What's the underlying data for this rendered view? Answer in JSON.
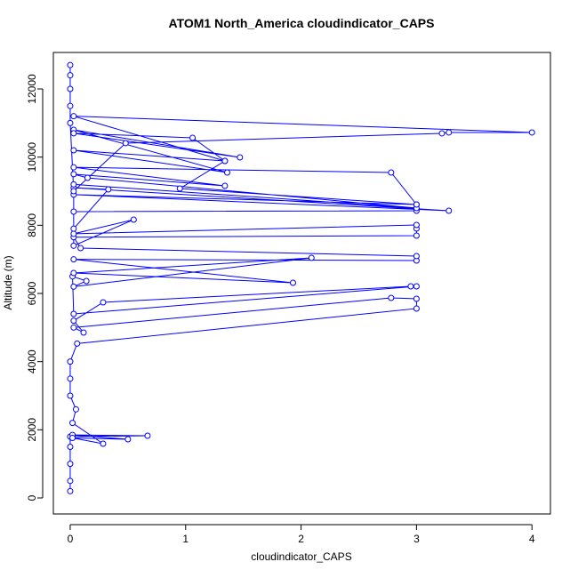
{
  "chart_data": {
    "type": "line",
    "title": "ATOM1 North_America cloudindicator_CAPS",
    "x_label": "cloudindicator_CAPS",
    "y_label": "Altitude (m)",
    "color": "#0000ff",
    "markers": true,
    "xlim": [
      -0.146,
      4.16
    ],
    "ylim": [
      -470,
      13070
    ],
    "xticks": [
      0,
      1,
      2,
      3,
      4
    ],
    "yticks": [
      0,
      2000,
      4000,
      6000,
      8000,
      10000,
      12000
    ],
    "x": [
      0,
      0,
      0,
      0,
      0,
      0.67,
      0.02,
      0.5,
      0.02,
      0.285,
      0.02,
      0.05,
      0,
      0,
      0,
      0.06,
      3,
      3,
      2.78,
      0.03,
      0.116,
      0.03,
      0.285,
      2.95,
      3,
      0.03,
      0.02,
      0.14,
      0.03,
      2.09,
      0.03,
      1.93,
      0.03,
      3,
      3,
      0.09,
      0.03,
      3,
      3,
      3,
      0.03,
      0.55,
      0.03,
      0.03,
      3,
      3,
      0.03,
      3.28,
      0.03,
      0.33,
      0.03,
      0.03,
      3,
      0.15,
      0.03,
      1.34,
      0.03,
      2.78,
      3,
      0.95,
      1.34,
      0.03,
      1.36,
      0.03,
      1.47,
      0.03,
      1.06,
      1.34,
      0.03,
      4,
      3.28,
      3.22,
      0.48,
      0.03,
      0,
      0,
      0,
      0,
      0
    ],
    "values": [
      200,
      500,
      1000,
      1500,
      1800,
      1826,
      1850,
      1722,
      1760,
      1591,
      2200,
      2600,
      3000,
      3500,
      4000,
      4530,
      5557,
      5844,
      5870,
      5000,
      4853,
      5200,
      5740,
      6209,
      6209,
      5400,
      6500,
      6366,
      6200,
      7044,
      6600,
      6313,
      7000,
      6966,
      7096,
      7331,
      7650,
      7696,
      7905,
      8009,
      7750,
      8166,
      7400,
      8400,
      8427,
      8609,
      8900,
      8427,
      9100,
      9053,
      7900,
      9200,
      8505,
      9392,
      9500,
      9157,
      9700,
      9548,
      8609,
      9079,
      9887,
      10200,
      9548,
      10800,
      9992,
      10700,
      10566,
      9887,
      11200,
      10723,
      10723,
      10697,
      10410,
      9000,
      11000,
      11500,
      12000,
      12400,
      12700
    ]
  }
}
